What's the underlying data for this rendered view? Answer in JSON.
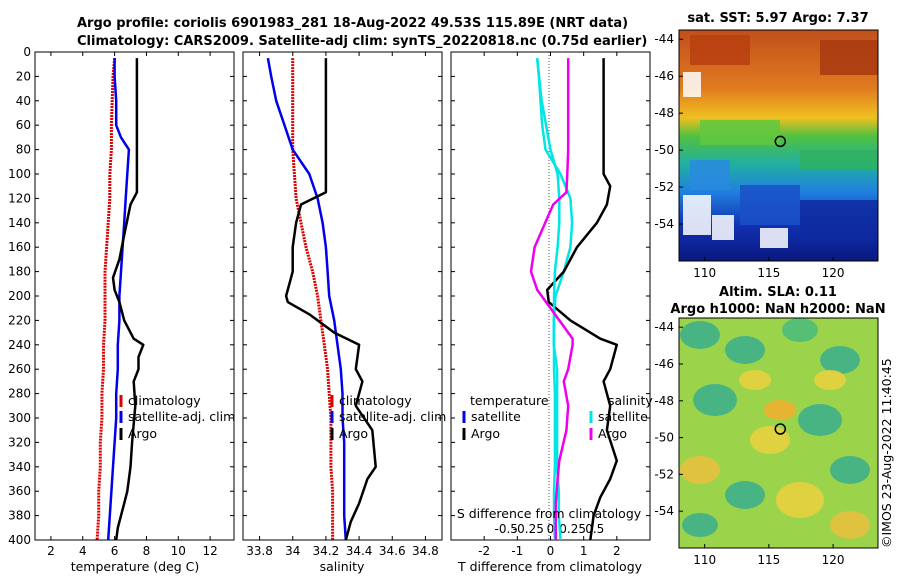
{
  "title": {
    "line1": "Argo profile: coriolis 6901983_281 18-Aug-2022 49.53S 115.89E (NRT data)",
    "line2": "Climatology: CARS2009. Satellite-adj clim: synTS_20220818.nc (0.75d earlier)"
  },
  "depth_ticks": [
    "0",
    "20",
    "40",
    "60",
    "80",
    "100",
    "120",
    "140",
    "160",
    "180",
    "200",
    "220",
    "240",
    "260",
    "280",
    "300",
    "320",
    "340",
    "360",
    "380",
    "400"
  ],
  "colors": {
    "climatology": "#dd0000",
    "satellite": "#0000ee",
    "argo": "#000000",
    "sat_diff": "#00e5e5",
    "sal_diff": "#ee00ee"
  },
  "chart_data": [
    {
      "type": "line",
      "xlabel": "temperature (deg C)",
      "xlim": [
        1,
        13.5
      ],
      "xticks": [
        2,
        4,
        6,
        8,
        10,
        12
      ],
      "ylim": [
        400,
        0
      ],
      "legend": [
        "climatology",
        "satellite-adj. clim",
        "Argo"
      ],
      "series": [
        {
          "name": "climatology",
          "x": [
            6.0,
            5.9,
            5.85,
            5.8,
            5.8,
            5.7,
            5.7,
            5.6,
            5.5,
            5.4,
            5.4,
            5.4,
            5.3,
            5.3,
            5.2,
            5.2,
            5.1,
            5.1,
            5.0,
            5.0,
            4.9
          ],
          "y": [
            5,
            20,
            40,
            60,
            80,
            100,
            120,
            140,
            160,
            180,
            200,
            220,
            240,
            260,
            280,
            300,
            320,
            340,
            360,
            380,
            400
          ]
        },
        {
          "name": "satellite-adj. clim",
          "x": [
            6.0,
            6.0,
            6.1,
            6.1,
            6.4,
            6.9,
            6.7,
            6.6,
            6.5,
            6.4,
            6.3,
            6.3,
            6.2,
            6.2,
            6.1,
            6.1,
            6.0,
            5.9,
            5.8,
            5.7,
            5.6
          ],
          "y": [
            5,
            20,
            40,
            60,
            70,
            80,
            120,
            140,
            160,
            180,
            200,
            220,
            240,
            260,
            280,
            300,
            320,
            340,
            360,
            380,
            400
          ]
        },
        {
          "name": "Argo",
          "x": [
            7.4,
            7.4,
            7.4,
            7.4,
            7.4,
            7.4,
            7.4,
            7.0,
            6.6,
            6.3,
            5.9,
            6.0,
            6.3,
            6.6,
            7.2,
            7.8,
            7.5,
            7.5,
            7.2,
            7.3,
            7.1,
            7.0,
            6.8,
            6.6,
            6.4,
            6.2,
            6.1
          ],
          "y": [
            5,
            20,
            40,
            60,
            80,
            100,
            115,
            125,
            150,
            170,
            185,
            195,
            205,
            220,
            235,
            240,
            250,
            260,
            270,
            290,
            320,
            340,
            360,
            370,
            380,
            390,
            400
          ]
        }
      ]
    },
    {
      "type": "line",
      "xlabel": "salinity",
      "xlim": [
        33.7,
        34.9
      ],
      "xticks": [
        "33.8",
        "34",
        "34.2",
        "34.4",
        "34.6",
        "34.8"
      ],
      "ylim": [
        400,
        0
      ],
      "legend": [
        "climatology",
        "satellite-adj. clim",
        "Argo"
      ],
      "series": [
        {
          "name": "climatology",
          "x": [
            34.0,
            34.0,
            34.0,
            34.0,
            34.0,
            34.01,
            34.02,
            34.05,
            34.08,
            34.12,
            34.15,
            34.17,
            34.19,
            34.21,
            34.22,
            34.23,
            34.23,
            34.23,
            34.24,
            34.24,
            34.24
          ],
          "y": [
            5,
            20,
            40,
            60,
            80,
            100,
            120,
            140,
            160,
            180,
            200,
            220,
            240,
            260,
            280,
            300,
            320,
            340,
            360,
            380,
            400
          ]
        },
        {
          "name": "satellite-adj. clim",
          "x": [
            33.85,
            33.87,
            33.9,
            33.95,
            34.0,
            34.1,
            34.15,
            34.18,
            34.2,
            34.21,
            34.22,
            34.25,
            34.27,
            34.29,
            34.3,
            34.3,
            34.31,
            34.31,
            34.31,
            34.31,
            34.32
          ],
          "y": [
            5,
            20,
            40,
            60,
            80,
            100,
            120,
            140,
            160,
            180,
            200,
            220,
            240,
            260,
            280,
            300,
            320,
            340,
            360,
            380,
            400
          ]
        },
        {
          "name": "Argo",
          "x": [
            34.2,
            34.2,
            34.2,
            34.2,
            34.2,
            34.2,
            34.2,
            34.05,
            34.02,
            34.0,
            34.0,
            33.96,
            33.97,
            34.1,
            34.25,
            34.4,
            34.38,
            34.42,
            34.38,
            34.48,
            34.5,
            34.45,
            34.4,
            34.35,
            34.32
          ],
          "y": [
            5,
            20,
            40,
            60,
            80,
            100,
            115,
            125,
            140,
            160,
            180,
            200,
            205,
            215,
            230,
            240,
            260,
            270,
            290,
            310,
            340,
            350,
            370,
            385,
            400
          ]
        }
      ]
    },
    {
      "type": "line",
      "xlabel": "T difference from climatology",
      "xlim": [
        -3,
        3
      ],
      "xticks": [
        "-2",
        "-1",
        "0",
        "1",
        "2"
      ],
      "top_label": "S difference from climatology",
      "top_ticks": [
        "-0.5",
        "-0.25",
        "0",
        "0.25",
        "0.5"
      ],
      "ylim": [
        400,
        0
      ],
      "legend_temperature": {
        "title": "temperature",
        "items": [
          "satellite",
          "Argo"
        ]
      },
      "legend_salinity": {
        "title": "salinity",
        "items": [
          "satellite",
          "Argo"
        ]
      },
      "series": [
        {
          "name": "temperature satellite",
          "x": [
            -0.4,
            -0.35,
            -0.3,
            -0.25,
            -0.15,
            0.3,
            0.6,
            0.65,
            0.6,
            0.4,
            0.15,
            0.1,
            0.1,
            0.2,
            0.2,
            0.2,
            0.2,
            0.2,
            0.25,
            0.25,
            0.3
          ],
          "y": [
            5,
            20,
            40,
            60,
            80,
            100,
            120,
            140,
            160,
            180,
            200,
            220,
            240,
            260,
            280,
            300,
            320,
            340,
            360,
            380,
            400
          ]
        },
        {
          "name": "temperature Argo",
          "x": [
            1.6,
            1.6,
            1.6,
            1.6,
            1.6,
            1.6,
            1.8,
            1.7,
            1.4,
            0.8,
            0.4,
            -0.1,
            -0.05,
            0.6,
            1.5,
            2.0,
            1.8,
            1.6,
            1.8,
            1.7,
            2.0,
            1.8,
            1.5,
            1.3,
            1.25,
            1.2
          ],
          "y": [
            5,
            20,
            40,
            60,
            80,
            100,
            110,
            125,
            140,
            160,
            180,
            195,
            205,
            220,
            235,
            240,
            260,
            270,
            290,
            310,
            335,
            350,
            365,
            380,
            390,
            400
          ]
        },
        {
          "name": "salinity satellite",
          "x": [
            -0.15,
            -0.13,
            -0.1,
            -0.05,
            0.0,
            0.08,
            0.1,
            0.1,
            0.08,
            0.05,
            0.04,
            0.04,
            0.04,
            0.04,
            0.05,
            0.05,
            0.05,
            0.05,
            0.04,
            0.04,
            0.05
          ],
          "y": [
            5,
            20,
            40,
            60,
            80,
            100,
            120,
            140,
            160,
            180,
            200,
            220,
            240,
            260,
            280,
            300,
            320,
            340,
            360,
            380,
            400
          ]
        },
        {
          "name": "salinity Argo",
          "x": [
            0.2,
            0.2,
            0.2,
            0.2,
            0.2,
            0.19,
            0.18,
            0.03,
            -0.06,
            -0.18,
            -0.22,
            -0.15,
            -0.05,
            0.15,
            0.25,
            0.25,
            0.2,
            0.15,
            0.2,
            0.18,
            0.1,
            0.08,
            0.06,
            0.06,
            0.06
          ],
          "y": [
            5,
            20,
            40,
            60,
            80,
            100,
            115,
            125,
            140,
            160,
            180,
            195,
            205,
            225,
            235,
            240,
            260,
            270,
            290,
            310,
            335,
            350,
            370,
            385,
            400
          ]
        }
      ]
    },
    {
      "type": "heatmap",
      "title": "sat. SST: 5.97 Argo: 7.37",
      "xticks": [
        "110",
        "115",
        "120"
      ],
      "yticks": [
        "-44",
        "-46",
        "-48",
        "-50",
        "-52",
        "-54"
      ],
      "xlim": [
        108,
        123.5
      ],
      "ylim": [
        -56,
        -43.5
      ],
      "marker": {
        "lon": 115.89,
        "lat": -49.53
      }
    },
    {
      "type": "heatmap",
      "title_line1": "Altim. SLA: 0.11",
      "title_line2": "Argo h1000: NaN h2000: NaN",
      "xticks": [
        "110",
        "115",
        "120"
      ],
      "yticks": [
        "-44",
        "-46",
        "-48",
        "-50",
        "-52",
        "-54"
      ],
      "xlim": [
        108,
        123.5
      ],
      "ylim": [
        -56,
        -43.5
      ],
      "marker": {
        "lon": 115.89,
        "lat": -49.53
      }
    }
  ],
  "credit": "©IMOS 23-Aug-2022 11:40:45"
}
